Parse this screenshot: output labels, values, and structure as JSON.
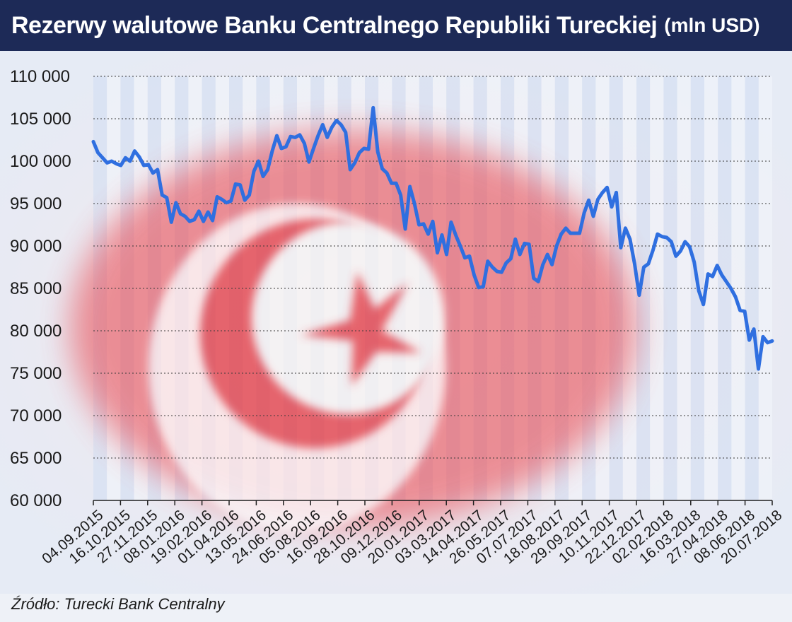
{
  "header": {
    "title": "Rezerwy walutowe Banku Centralnego Republiki Tureckiej",
    "unit": "(mln USD)"
  },
  "footer": {
    "source": "Źródło: Turecki Bank Centralny"
  },
  "colors": {
    "title_bg": "#1d2a57",
    "line": "#2f6fe0",
    "band_light": "#f3f6fc",
    "band_dark": "#cfdcf3",
    "flag_red": "#e23c46"
  },
  "decoration": {
    "background_image": "turkish-flag-crescent-and-star"
  },
  "chart_data": {
    "type": "line",
    "title": "Rezerwy walutowe Banku Centralnego Republiki Tureckiej (mln USD)",
    "ylim": [
      60000,
      110000
    ],
    "yticks": [
      110000,
      105000,
      100000,
      95000,
      90000,
      85000,
      80000,
      75000,
      70000,
      65000,
      60000
    ],
    "ytick_labels": [
      "110 000",
      "105 000",
      "100 000",
      "95 000",
      "90 000",
      "85 000",
      "80 000",
      "75 000",
      "70 000",
      "65 000",
      "60 000"
    ],
    "xtick_labels": [
      "04.09.2015",
      "16.10.2015",
      "27.11.2015",
      "08.01.2016",
      "19.02.2016",
      "01.04.2016",
      "13.05.2016",
      "24.06.2016",
      "05.08.2016",
      "16.09.2016",
      "28.10.2016",
      "09.12.2016",
      "20.01.2017",
      "03.03.2017",
      "14.04.2017",
      "26.05.2017",
      "07.07.2017",
      "18.08.2017",
      "29.09.2017",
      "10.11.2017",
      "22.12.2017",
      "02.02.2018",
      "16.03.2018",
      "27.04.2018",
      "08.06.2018",
      "20.07.2018"
    ],
    "grid": true,
    "series": [
      {
        "values": [
          102300,
          101000,
          100400,
          99800,
          100000,
          99700,
          99500,
          100400,
          100000,
          101200,
          100500,
          99500,
          99600,
          98600,
          99000,
          96000,
          95700,
          92800,
          95100,
          93800,
          93500,
          92900,
          93100,
          94100,
          92900,
          94000,
          93000,
          95800,
          95500,
          95100,
          95300,
          97300,
          97200,
          95400,
          96000,
          98800,
          100000,
          98200,
          99000,
          101200,
          103000,
          101500,
          101700,
          102900,
          102800,
          103100,
          102100,
          99900,
          101500,
          103000,
          104300,
          102800,
          104000,
          104800,
          104300,
          103400,
          99000,
          99800,
          101000,
          101500,
          101400,
          106300,
          101100,
          99100,
          98600,
          97400,
          97400,
          96000,
          92000,
          97000,
          95000,
          92500,
          92600,
          91400,
          92900,
          89200,
          91300,
          89000,
          92800,
          91300,
          90000,
          88600,
          88800,
          86600,
          85100,
          85200,
          88200,
          87500,
          87000,
          86900,
          88000,
          88500,
          90800,
          89000,
          90300,
          90200,
          86200,
          85800,
          87800,
          89000,
          87800,
          90000,
          91400,
          92100,
          91500,
          91500,
          91500,
          93900,
          95400,
          93500,
          95500,
          96300,
          96900,
          94600,
          96300,
          89800,
          92100,
          90800,
          87900,
          84200,
          87500,
          87900,
          89500,
          91400,
          91100,
          91000,
          90500,
          88800,
          89400,
          90500,
          89900,
          88100,
          84700,
          83100,
          86700,
          86400,
          87700,
          86600,
          85800,
          85000,
          84000,
          82400,
          82300,
          78900,
          80200,
          75500,
          79300,
          78600,
          78800
        ]
      }
    ]
  }
}
